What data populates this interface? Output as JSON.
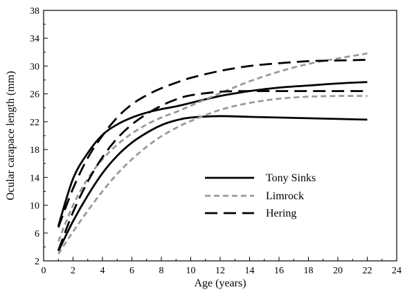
{
  "chart_data": {
    "type": "line",
    "title": "",
    "xlabel": "Age (years)",
    "ylabel": "Ocular carapace length (mm)",
    "xlim": [
      0,
      24
    ],
    "ylim": [
      2,
      38
    ],
    "xticks": [
      0,
      2,
      4,
      6,
      8,
      10,
      12,
      14,
      16,
      18,
      20,
      22,
      24
    ],
    "yticks": [
      2,
      6,
      10,
      14,
      18,
      22,
      26,
      30,
      34,
      38
    ],
    "grid": false,
    "legend_position": "center-right",
    "legend": [
      {
        "label": "Tony Sinks",
        "style": "solid",
        "color": "#000000"
      },
      {
        "label": "Limrock",
        "style": "dotted",
        "color": "#999999"
      },
      {
        "label": "Hering",
        "style": "dashed",
        "color": "#000000"
      }
    ],
    "series": [
      {
        "name": "Tony Sinks",
        "style": "solid",
        "color": "#000000",
        "x": [
          1,
          2,
          3,
          4,
          5,
          6,
          7,
          8,
          9,
          10,
          12,
          14,
          16,
          18,
          20,
          22
        ],
        "y": [
          7.0,
          13.8,
          17.5,
          20.1,
          21.6,
          22.6,
          23.3,
          23.8,
          24.2,
          24.7,
          25.7,
          26.4,
          26.9,
          27.2,
          27.5,
          27.7
        ]
      },
      {
        "name": "Tony Sinks",
        "style": "solid",
        "color": "#000000",
        "x": [
          1,
          2,
          3,
          4,
          5,
          6,
          7,
          8,
          9,
          10,
          12,
          14,
          16,
          18,
          20,
          22
        ],
        "y": [
          3.4,
          7.7,
          11.4,
          14.6,
          17.1,
          19.0,
          20.4,
          21.5,
          22.2,
          22.6,
          22.8,
          22.7,
          22.6,
          22.5,
          22.4,
          22.3
        ]
      },
      {
        "name": "Limrock",
        "style": "dotted",
        "color": "#999999",
        "x": [
          1,
          2,
          3,
          4,
          5,
          6,
          7,
          8,
          9,
          10,
          12,
          14,
          16,
          18,
          20,
          22
        ],
        "y": [
          4.8,
          10.0,
          13.8,
          16.6,
          18.7,
          20.3,
          21.6,
          22.6,
          23.4,
          24.3,
          26.1,
          27.8,
          29.2,
          30.3,
          31.1,
          31.8
        ]
      },
      {
        "name": "Limrock",
        "style": "dotted",
        "color": "#999999",
        "x": [
          1,
          2,
          3,
          4,
          5,
          6,
          7,
          8,
          9,
          10,
          12,
          14,
          16,
          18,
          20,
          22
        ],
        "y": [
          3.0,
          6.2,
          9.2,
          12.0,
          14.5,
          16.6,
          18.4,
          19.9,
          21.1,
          22.1,
          23.7,
          24.7,
          25.3,
          25.6,
          25.7,
          25.7
        ]
      },
      {
        "name": "Hering",
        "style": "dashed",
        "color": "#000000",
        "x": [
          1,
          2,
          3,
          4,
          5,
          6,
          7,
          8,
          9,
          10,
          12,
          14,
          16,
          18,
          20,
          22
        ],
        "y": [
          6.8,
          12.4,
          16.8,
          20.0,
          22.6,
          24.5,
          25.8,
          26.8,
          27.6,
          28.3,
          29.3,
          30.0,
          30.4,
          30.7,
          30.8,
          30.9
        ]
      },
      {
        "name": "Hering",
        "style": "dashed",
        "color": "#000000",
        "x": [
          1,
          2,
          3,
          4,
          5,
          6,
          7,
          8,
          9,
          10,
          12,
          14,
          16,
          18,
          20,
          22
        ],
        "y": [
          3.5,
          9.0,
          13.4,
          16.9,
          19.6,
          21.6,
          23.1,
          24.3,
          25.2,
          25.8,
          26.3,
          26.4,
          26.4,
          26.4,
          26.4,
          26.4
        ]
      }
    ]
  }
}
